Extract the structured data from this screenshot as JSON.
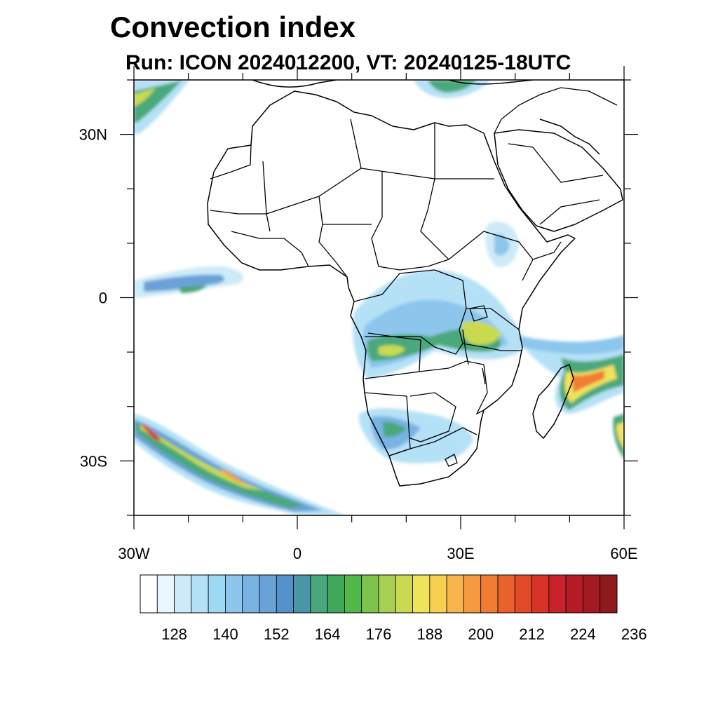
{
  "title": "Convection index",
  "subtitle": "Run: ICON 2024012200,  VT: 20240125-18UTC",
  "map": {
    "projection": "cylindrical-equidistant",
    "lon_range": [
      -30,
      60
    ],
    "lat_range": [
      -40,
      40
    ],
    "lon_ticks": [
      {
        "value": -30,
        "label": "30W"
      },
      {
        "value": 0,
        "label": "0"
      },
      {
        "value": 30,
        "label": "30E"
      },
      {
        "value": 60,
        "label": "60E"
      }
    ],
    "lat_ticks": [
      {
        "value": 30,
        "label": "30N"
      },
      {
        "value": 0,
        "label": "0"
      },
      {
        "value": -30,
        "label": "30S"
      }
    ]
  },
  "colorbar": {
    "labels": [
      "128",
      "140",
      "152",
      "164",
      "176",
      "188",
      "200",
      "212",
      "224",
      "236"
    ],
    "colors": [
      "#ffffff",
      "#eaf6fd",
      "#cdeaf8",
      "#b5e1f6",
      "#9ed9f3",
      "#8cc6ec",
      "#79b3e2",
      "#6aa2d8",
      "#5291c9",
      "#4a96a8",
      "#48a87c",
      "#3fa85a",
      "#52b948",
      "#7dc44e",
      "#a7cf52",
      "#c9da50",
      "#efe35a",
      "#f7d051",
      "#f7b44c",
      "#f49a40",
      "#f07d34",
      "#e9622c",
      "#e04a28",
      "#d93228",
      "#c9222a",
      "#b51c26",
      "#a21b22",
      "#8e1a1e"
    ]
  },
  "chart_data": {
    "type": "heatmap",
    "variable": "Convection index",
    "model": "ICON",
    "run": "2024012200",
    "valid_time": "20240125-18UTC",
    "lon_range": [
      -30,
      60
    ],
    "lat_range": [
      -40,
      40
    ],
    "color_scale_labels": [
      128,
      140,
      152,
      164,
      176,
      188,
      200,
      212,
      224,
      236
    ],
    "regions_of_high_values": [
      {
        "name": "southwest Atlantic band",
        "lon": [
          -30,
          7
        ],
        "lat": [
          -40,
          -22
        ],
        "peak_level": 224
      },
      {
        "name": "Madagascar / Mozambique Channel",
        "lon": [
          44,
          60
        ],
        "lat": [
          -22,
          -10
        ],
        "peak_level": 212
      },
      {
        "name": "Congo basin / Angola / Tanzania",
        "lon": [
          10,
          42
        ],
        "lat": [
          -15,
          5
        ],
        "peak_level": 188
      },
      {
        "name": "Namibia / Botswana / South Africa",
        "lon": [
          12,
          32
        ],
        "lat": [
          -30,
          -18
        ],
        "peak_level": 164
      },
      {
        "name": "Gulf of Guinea band",
        "lon": [
          -30,
          -10
        ],
        "lat": [
          -1,
          5
        ],
        "peak_level": 164
      },
      {
        "name": "North Atlantic corner",
        "lon": [
          -30,
          -20
        ],
        "lat": [
          33,
          40
        ],
        "peak_level": 176
      },
      {
        "name": "Eastern Mediterranean",
        "lon": [
          21,
          30
        ],
        "lat": [
          36,
          40
        ],
        "peak_level": 164
      },
      {
        "name": "Ethiopian highlands",
        "lon": [
          35,
          40
        ],
        "lat": [
          6,
          13
        ],
        "peak_level": 140
      }
    ]
  }
}
